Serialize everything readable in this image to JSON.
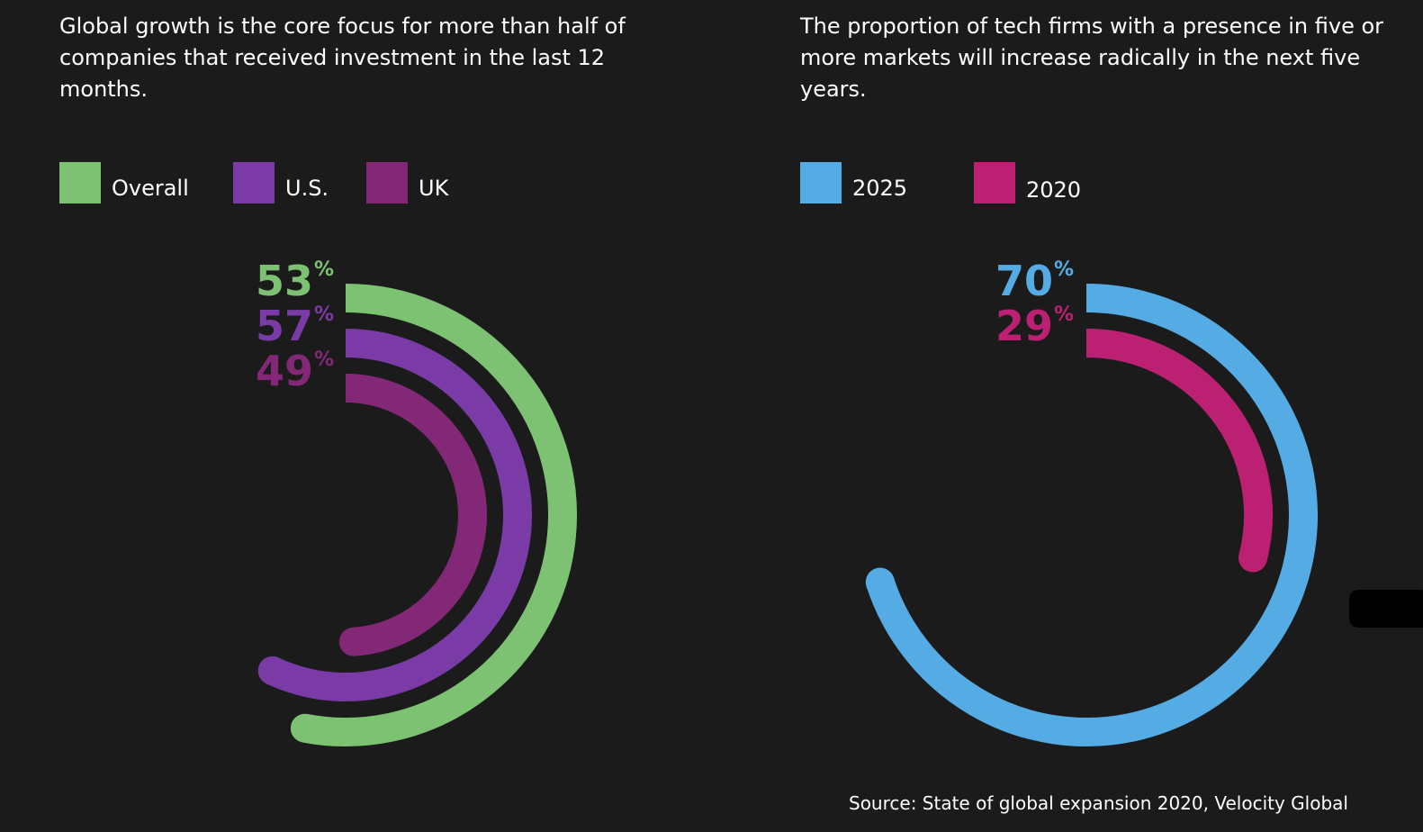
{
  "colors": {
    "background": "#1b1b1b",
    "overall": "#7dc173",
    "us": "#7a3ba6",
    "uk": "#822876",
    "y2025": "#55ace4",
    "y2020": "#bb2073"
  },
  "left_panel": {
    "title": "Global growth is the core focus for more than half of companies that received investment in the last 12 months.",
    "legend": [
      {
        "label": "Overall"
      },
      {
        "label": "U.S."
      },
      {
        "label": "UK"
      }
    ]
  },
  "right_panel": {
    "title": "The proportion of tech firms with a presence in five or more markets will increase radically in the next five years.",
    "legend": [
      {
        "label": "2025"
      },
      {
        "label": "2020"
      }
    ]
  },
  "source": "Source: State of global expansion 2020, Velocity Global",
  "chart_data": [
    {
      "type": "radial-bar",
      "title": "Global growth is the core focus for more than half of companies that received investment in the last 12 months.",
      "unit": "%",
      "series": [
        {
          "name": "Overall",
          "value": 53,
          "color": "#7dc173"
        },
        {
          "name": "U.S.",
          "value": 57,
          "color": "#7a3ba6"
        },
        {
          "name": "UK",
          "value": 49,
          "color": "#822876"
        }
      ]
    },
    {
      "type": "radial-bar",
      "title": "The proportion of tech firms with a presence in five or more markets will increase radically in the next five years.",
      "unit": "%",
      "series": [
        {
          "name": "2025",
          "value": 70,
          "color": "#55ace4"
        },
        {
          "name": "2020",
          "value": 29,
          "color": "#bb2073"
        }
      ]
    }
  ]
}
